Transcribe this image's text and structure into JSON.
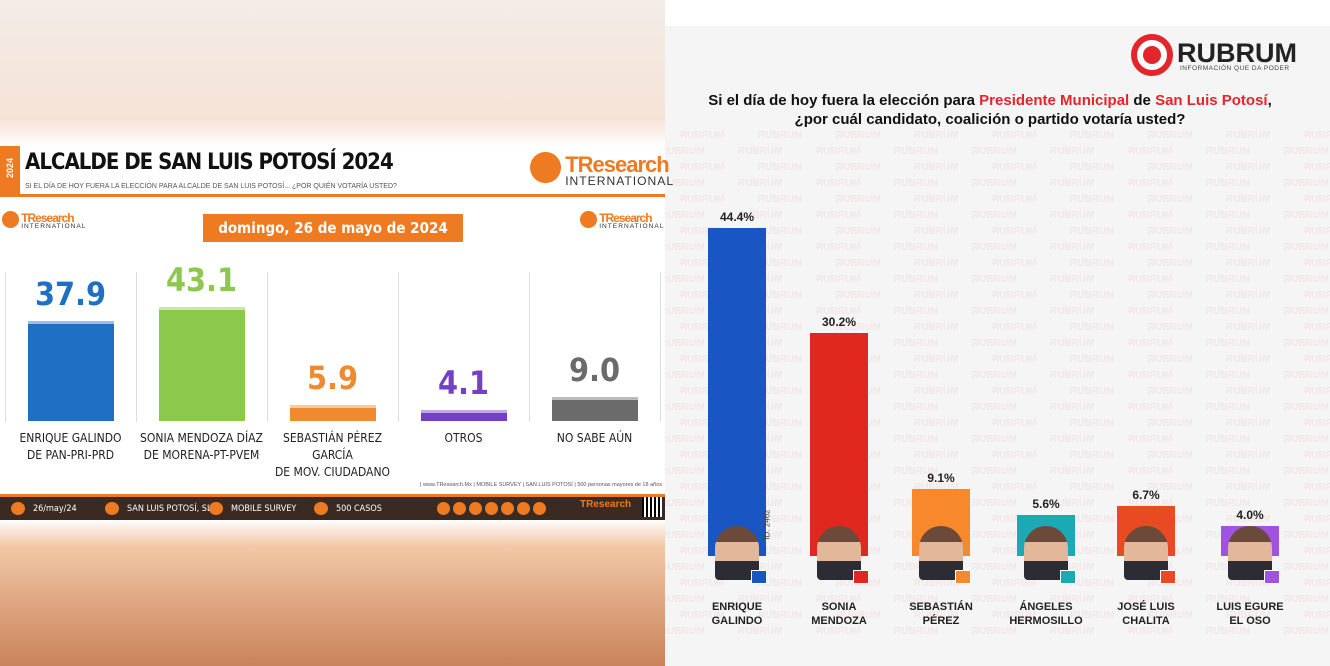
{
  "chart_data": [
    {
      "type": "bar",
      "side_label": "2024",
      "title": "ALCALDE DE SAN LUIS POTOSÍ 2024",
      "subtitle": "SI EL DÍA DE HOY FUERA LA ELECCIÓN PARA ALCALDE DE SAN LUIS POTOSÍ... ¿POR QUIÉN VOTARÍA USTED?",
      "brand": "TResearch",
      "brand_sub": "INTERNATIONAL",
      "date": "domingo, 26 de mayo de 2024",
      "categories": [
        "ENRIQUE GALINDO\nDE PAN-PRI-PRD",
        "SONIA MENDOZA DÍAZ\nDE MORENA-PT-PVEM",
        "SEBASTIÁN PÉREZ GARCÍA\nDE MOV. CIUDADANO",
        "OTROS",
        "NO SABE AÚN"
      ],
      "values": [
        37.9,
        43.1,
        5.9,
        4.1,
        9.0
      ],
      "value_labels": [
        "37.9",
        "43.1",
        "5.9",
        "4.1",
        "9.0"
      ],
      "colors": [
        "#1f6fc4",
        "#8cc84b",
        "#f08a30",
        "#7440c4",
        "#6b6b6b"
      ],
      "source": "| www.TResearch.Mx | MOBILE SURVEY | SAN LUIS POTOSÍ | 500 personas mayores de 18 años",
      "footer": [
        "26/may/24",
        "SAN LUIS POTOSÍ, SLP.",
        "MOBILE SURVEY",
        "500 CASOS"
      ]
    },
    {
      "type": "bar",
      "logo": "RUBRUM",
      "tagline": "INFORMACIÓN QUE DA PODER",
      "question": [
        {
          "text": "Si el día de hoy fuera la elección para ",
          "color": "#111111"
        },
        {
          "text": "Presidente Municipal",
          "color": "#e3262b"
        },
        {
          "text": " de ",
          "color": "#111111"
        },
        {
          "text": "San Luis Potosí",
          "color": "#e3262b"
        },
        {
          "text": ", ¿por cuál candidato, coalición o partido votaría usted?",
          "color": "#111111"
        }
      ],
      "watermark": "RUBRUM",
      "id_label": "ID: 2462",
      "categories": [
        "ENRIQUE\nGALINDO",
        "SONIA\nMENDOZA",
        "SEBASTIÁN\nPÉREZ",
        "ÁNGELES\nHERMOSILLO",
        "JOSÉ LUIS\nCHALITA",
        "LUIS EGURE\nEL OSO"
      ],
      "values": [
        44.4,
        30.2,
        9.1,
        5.6,
        6.7,
        4.0
      ],
      "value_labels": [
        "44.4%",
        "30.2%",
        "9.1%",
        "5.6%",
        "6.7%",
        "4.0%"
      ],
      "colors": [
        "#1a55c4",
        "#e0281e",
        "#f7882c",
        "#1aa9b5",
        "#e84a22",
        "#a052e0"
      ]
    }
  ]
}
